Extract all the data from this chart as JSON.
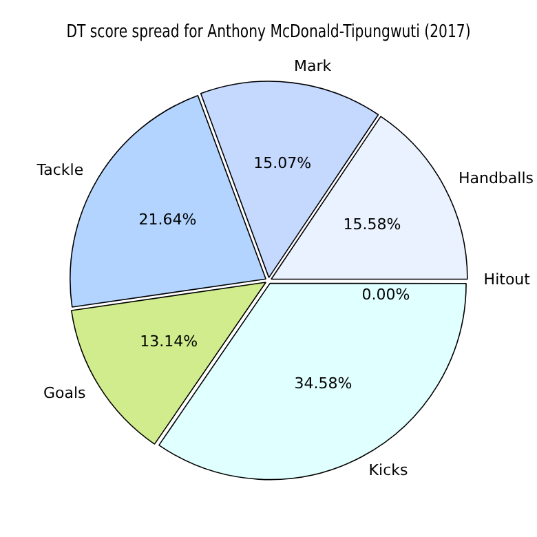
{
  "chart_data": {
    "type": "pie",
    "title": "DT score spread for Anthony McDonald-Tipungwuti (2017)",
    "categories": [
      "Kicks",
      "Goals",
      "Tackle",
      "Mark",
      "Handballs",
      "Hitout"
    ],
    "values": [
      34.58,
      13.14,
      21.64,
      15.07,
      15.58,
      0.0
    ],
    "colors": [
      "#e0ffff",
      "#d0ec8c",
      "#b3d4ff",
      "#c5d9ff",
      "#eaf2ff",
      "#e6e6fa"
    ],
    "value_labels": [
      "34.58%",
      "13.14%",
      "21.64%",
      "15.07%",
      "15.58%",
      "0.00%"
    ],
    "legend": false
  }
}
